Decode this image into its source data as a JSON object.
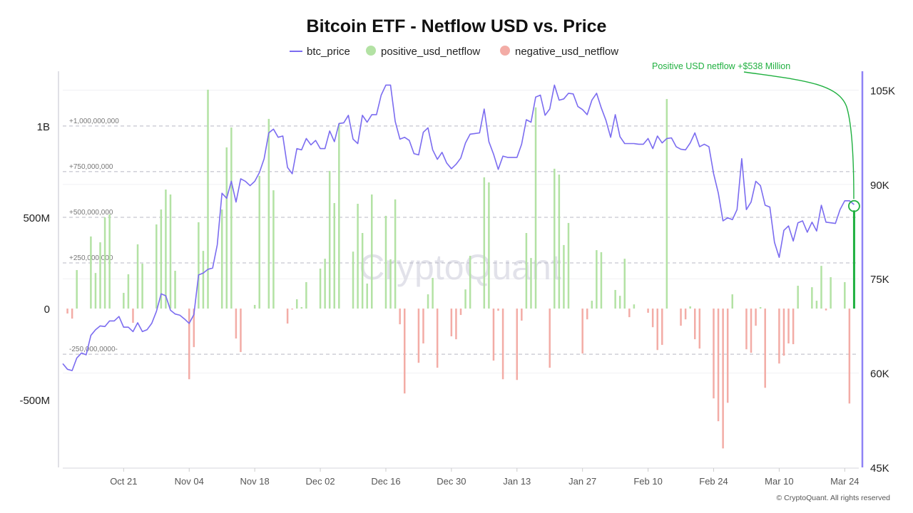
{
  "chart_data": {
    "type": "bar+line",
    "title": "Bitcoin ETF - Netflow USD vs. Price",
    "legend": {
      "placement": "top-center",
      "items": [
        {
          "label": "btc_price",
          "marker": "line",
          "color": "#7b6cf0"
        },
        {
          "label": "positive_usd_netflow",
          "marker": "circle",
          "color": "#b3e2a4"
        },
        {
          "label": "negative_usd_netflow",
          "marker": "circle",
          "color": "#f3aca6"
        }
      ]
    },
    "x_ticks": [
      {
        "date": "2024-10-21",
        "label": "Oct 21"
      },
      {
        "date": "2024-11-04",
        "label": "Nov 04"
      },
      {
        "date": "2024-11-18",
        "label": "Nov 18"
      },
      {
        "date": "2024-12-02",
        "label": "Dec 02"
      },
      {
        "date": "2024-12-16",
        "label": "Dec 16"
      },
      {
        "date": "2024-12-30",
        "label": "Dec 30"
      },
      {
        "date": "2025-01-13",
        "label": "Jan 13"
      },
      {
        "date": "2025-01-27",
        "label": "Jan 27"
      },
      {
        "date": "2025-02-10",
        "label": "Feb 10"
      },
      {
        "date": "2025-02-24",
        "label": "Feb 24"
      },
      {
        "date": "2025-03-10",
        "label": "Mar 10"
      },
      {
        "date": "2025-03-24",
        "label": "Mar 24"
      }
    ],
    "xlim": [
      "2024-10-08",
      "2025-03-27"
    ],
    "y_left": {
      "lim": [
        -870000000,
        1300000000
      ],
      "ticks": [
        {
          "value": 1000000000,
          "label": "1B"
        },
        {
          "value": 500000000,
          "label": "500M"
        },
        {
          "value": 0,
          "label": "0"
        },
        {
          "value": -500000000,
          "label": "-500M"
        }
      ]
    },
    "y_right": {
      "lim": [
        45000,
        108000
      ],
      "color": "#8f82f5",
      "ticks": [
        {
          "value": 105000,
          "label": "105K"
        },
        {
          "value": 90000,
          "label": "90K"
        },
        {
          "value": 75000,
          "label": "75K"
        },
        {
          "value": 60000,
          "label": "60K"
        },
        {
          "value": 45000,
          "label": "45K"
        }
      ]
    },
    "reference_lines": [
      {
        "value": 1000000000,
        "label": "+1,000,000,000"
      },
      {
        "value": 750000000,
        "label": "+750,000,000"
      },
      {
        "value": 500000000,
        "label": "+500,000,000"
      },
      {
        "value": 250000000,
        "label": "+250,000,000"
      },
      {
        "value": -250000000,
        "label": "-250,000,0000-"
      }
    ],
    "annotation": {
      "text": "Positive USD netflow +$538 Million",
      "date": "2025-03-26",
      "value": 538000000,
      "color": "#20b040"
    },
    "watermark": "CryptoQuant",
    "footer": "© CryptoQuant. All rights reserved",
    "btc_price": [
      [
        "2024-10-08",
        61500
      ],
      [
        "2024-10-09",
        60600
      ],
      [
        "2024-10-10",
        60400
      ],
      [
        "2024-10-11",
        62400
      ],
      [
        "2024-10-12",
        63200
      ],
      [
        "2024-10-13",
        62900
      ],
      [
        "2024-10-14",
        66000
      ],
      [
        "2024-10-15",
        66900
      ],
      [
        "2024-10-16",
        67500
      ],
      [
        "2024-10-17",
        67400
      ],
      [
        "2024-10-18",
        68300
      ],
      [
        "2024-10-19",
        68300
      ],
      [
        "2024-10-20",
        69000
      ],
      [
        "2024-10-21",
        67300
      ],
      [
        "2024-10-22",
        67300
      ],
      [
        "2024-10-23",
        66600
      ],
      [
        "2024-10-24",
        68000
      ],
      [
        "2024-10-25",
        66600
      ],
      [
        "2024-10-26",
        66900
      ],
      [
        "2024-10-27",
        67900
      ],
      [
        "2024-10-28",
        69800
      ],
      [
        "2024-10-29",
        72600
      ],
      [
        "2024-10-30",
        72300
      ],
      [
        "2024-10-31",
        70000
      ],
      [
        "2024-11-01",
        69400
      ],
      [
        "2024-11-02",
        69200
      ],
      [
        "2024-11-03",
        68600
      ],
      [
        "2024-11-04",
        67900
      ],
      [
        "2024-11-05",
        69300
      ],
      [
        "2024-11-06",
        75600
      ],
      [
        "2024-11-07",
        75900
      ],
      [
        "2024-11-08",
        76500
      ],
      [
        "2024-11-09",
        76700
      ],
      [
        "2024-11-10",
        80400
      ],
      [
        "2024-11-11",
        88600
      ],
      [
        "2024-11-12",
        87800
      ],
      [
        "2024-11-13",
        90500
      ],
      [
        "2024-11-14",
        87200
      ],
      [
        "2024-11-15",
        90900
      ],
      [
        "2024-11-16",
        90500
      ],
      [
        "2024-11-17",
        89800
      ],
      [
        "2024-11-18",
        90500
      ],
      [
        "2024-11-19",
        91900
      ],
      [
        "2024-11-20",
        94100
      ],
      [
        "2024-11-21",
        98200
      ],
      [
        "2024-11-22",
        98800
      ],
      [
        "2024-11-23",
        97500
      ],
      [
        "2024-11-24",
        97700
      ],
      [
        "2024-11-25",
        92700
      ],
      [
        "2024-11-26",
        91700
      ],
      [
        "2024-11-27",
        95700
      ],
      [
        "2024-11-28",
        95500
      ],
      [
        "2024-11-29",
        97300
      ],
      [
        "2024-11-30",
        96300
      ],
      [
        "2024-12-01",
        97000
      ],
      [
        "2024-12-02",
        95700
      ],
      [
        "2024-12-03",
        95700
      ],
      [
        "2024-12-04",
        98500
      ],
      [
        "2024-12-05",
        96800
      ],
      [
        "2024-12-06",
        99700
      ],
      [
        "2024-12-07",
        99800
      ],
      [
        "2024-12-08",
        101000
      ],
      [
        "2024-12-09",
        97200
      ],
      [
        "2024-12-10",
        96500
      ],
      [
        "2024-12-11",
        101000
      ],
      [
        "2024-12-12",
        99900
      ],
      [
        "2024-12-13",
        101100
      ],
      [
        "2024-12-14",
        101100
      ],
      [
        "2024-12-15",
        104200
      ],
      [
        "2024-12-16",
        105800
      ],
      [
        "2024-12-17",
        105800
      ],
      [
        "2024-12-18",
        100000
      ],
      [
        "2024-12-19",
        97200
      ],
      [
        "2024-12-20",
        97500
      ],
      [
        "2024-12-21",
        97000
      ],
      [
        "2024-12-22",
        94900
      ],
      [
        "2024-12-23",
        94700
      ],
      [
        "2024-12-24",
        98300
      ],
      [
        "2024-12-25",
        99000
      ],
      [
        "2024-12-26",
        95500
      ],
      [
        "2024-12-27",
        94000
      ],
      [
        "2024-12-28",
        95100
      ],
      [
        "2024-12-29",
        93400
      ],
      [
        "2024-12-30",
        92500
      ],
      [
        "2024-12-31",
        93200
      ],
      [
        "2025-01-01",
        94200
      ],
      [
        "2025-01-02",
        96600
      ],
      [
        "2025-01-03",
        98000
      ],
      [
        "2025-01-04",
        98100
      ],
      [
        "2025-01-05",
        98200
      ],
      [
        "2025-01-06",
        102000
      ],
      [
        "2025-01-07",
        96800
      ],
      [
        "2025-01-08",
        94800
      ],
      [
        "2025-01-09",
        92400
      ],
      [
        "2025-01-10",
        94500
      ],
      [
        "2025-01-11",
        94300
      ],
      [
        "2025-01-12",
        94300
      ],
      [
        "2025-01-13",
        94300
      ],
      [
        "2025-01-14",
        96400
      ],
      [
        "2025-01-15",
        100300
      ],
      [
        "2025-01-16",
        99900
      ],
      [
        "2025-01-17",
        103900
      ],
      [
        "2025-01-18",
        104200
      ],
      [
        "2025-01-19",
        101000
      ],
      [
        "2025-01-20",
        102000
      ],
      [
        "2025-01-21",
        105800
      ],
      [
        "2025-01-22",
        103400
      ],
      [
        "2025-01-23",
        103600
      ],
      [
        "2025-01-24",
        104500
      ],
      [
        "2025-01-25",
        104400
      ],
      [
        "2025-01-26",
        102400
      ],
      [
        "2025-01-27",
        101900
      ],
      [
        "2025-01-28",
        101100
      ],
      [
        "2025-01-29",
        103400
      ],
      [
        "2025-01-30",
        104500
      ],
      [
        "2025-01-31",
        102200
      ],
      [
        "2025-02-01",
        100200
      ],
      [
        "2025-02-02",
        97500
      ],
      [
        "2025-02-03",
        101100
      ],
      [
        "2025-02-04",
        97600
      ],
      [
        "2025-02-05",
        96500
      ],
      [
        "2025-02-06",
        96500
      ],
      [
        "2025-02-07",
        96500
      ],
      [
        "2025-02-08",
        96400
      ],
      [
        "2025-02-09",
        96400
      ],
      [
        "2025-02-10",
        97300
      ],
      [
        "2025-02-11",
        95700
      ],
      [
        "2025-02-12",
        97700
      ],
      [
        "2025-02-13",
        96600
      ],
      [
        "2025-02-14",
        97300
      ],
      [
        "2025-02-15",
        97400
      ],
      [
        "2025-02-16",
        96000
      ],
      [
        "2025-02-17",
        95600
      ],
      [
        "2025-02-18",
        95500
      ],
      [
        "2025-02-19",
        96600
      ],
      [
        "2025-02-20",
        98200
      ],
      [
        "2025-02-21",
        96000
      ],
      [
        "2025-02-22",
        96400
      ],
      [
        "2025-02-23",
        96000
      ],
      [
        "2025-02-24",
        91700
      ],
      [
        "2025-02-25",
        88600
      ],
      [
        "2025-02-26",
        84200
      ],
      [
        "2025-02-27",
        84700
      ],
      [
        "2025-02-28",
        84400
      ],
      [
        "2025-03-01",
        86000
      ],
      [
        "2025-03-02",
        94100
      ],
      [
        "2025-03-03",
        86000
      ],
      [
        "2025-03-04",
        87200
      ],
      [
        "2025-03-05",
        90500
      ],
      [
        "2025-03-06",
        89800
      ],
      [
        "2025-03-07",
        86700
      ],
      [
        "2025-03-08",
        86400
      ],
      [
        "2025-03-09",
        80800
      ],
      [
        "2025-03-10",
        78400
      ],
      [
        "2025-03-11",
        82700
      ],
      [
        "2025-03-12",
        83400
      ],
      [
        "2025-03-13",
        81000
      ],
      [
        "2025-03-14",
        83900
      ],
      [
        "2025-03-15",
        84200
      ],
      [
        "2025-03-16",
        82400
      ],
      [
        "2025-03-17",
        84000
      ],
      [
        "2025-03-18",
        82600
      ],
      [
        "2025-03-19",
        86700
      ],
      [
        "2025-03-20",
        84000
      ],
      [
        "2025-03-21",
        83900
      ],
      [
        "2025-03-22",
        83800
      ],
      [
        "2025-03-23",
        86000
      ],
      [
        "2025-03-24",
        87400
      ],
      [
        "2025-03-25",
        87400
      ],
      [
        "2025-03-26",
        86800
      ]
    ],
    "usd_netflow": [
      [
        "2024-10-09",
        -27000000
      ],
      [
        "2024-10-10",
        -55000000
      ],
      [
        "2024-10-11",
        211000000
      ],
      [
        "2024-10-14",
        395000000
      ],
      [
        "2024-10-15",
        195000000
      ],
      [
        "2024-10-16",
        363000000
      ],
      [
        "2024-10-17",
        500000000
      ],
      [
        "2024-10-18",
        516000000
      ],
      [
        "2024-10-21",
        86000000
      ],
      [
        "2024-10-22",
        188000000
      ],
      [
        "2024-10-23",
        -78000000
      ],
      [
        "2024-10-24",
        352000000
      ],
      [
        "2024-10-25",
        246000000
      ],
      [
        "2024-10-28",
        461000000
      ],
      [
        "2024-10-29",
        543000000
      ],
      [
        "2024-10-30",
        652000000
      ],
      [
        "2024-10-31",
        625000000
      ],
      [
        "2024-11-01",
        207000000
      ],
      [
        "2024-11-04",
        -387000000
      ],
      [
        "2024-11-05",
        -211000000
      ],
      [
        "2024-11-06",
        473000000
      ],
      [
        "2024-11-07",
        316000000
      ],
      [
        "2024-11-08",
        1199000000
      ],
      [
        "2024-11-11",
        543000000
      ],
      [
        "2024-11-12",
        883000000
      ],
      [
        "2024-11-13",
        992000000
      ],
      [
        "2024-11-14",
        -164000000
      ],
      [
        "2024-11-15",
        -238000000
      ],
      [
        "2024-11-18",
        20000000
      ],
      [
        "2024-11-19",
        727000000
      ],
      [
        "2024-11-21",
        1039000000
      ],
      [
        "2024-11-22",
        648000000
      ],
      [
        "2024-11-25",
        -82000000
      ],
      [
        "2024-11-26",
        -5000000
      ],
      [
        "2024-11-27",
        51000000
      ],
      [
        "2024-11-28",
        8000000
      ],
      [
        "2024-11-29",
        145000000
      ],
      [
        "2024-12-02",
        219000000
      ],
      [
        "2024-12-03",
        273000000
      ],
      [
        "2024-12-04",
        754000000
      ],
      [
        "2024-12-05",
        578000000
      ],
      [
        "2024-12-06",
        1012000000
      ],
      [
        "2024-12-09",
        312000000
      ],
      [
        "2024-12-10",
        574000000
      ],
      [
        "2024-12-11",
        414000000
      ],
      [
        "2024-12-12",
        137000000
      ],
      [
        "2024-12-13",
        625000000
      ],
      [
        "2024-12-16",
        508000000
      ],
      [
        "2024-12-17",
        270000000
      ],
      [
        "2024-12-18",
        598000000
      ],
      [
        "2024-12-19",
        -86000000
      ],
      [
        "2024-12-20",
        -465000000
      ],
      [
        "2024-12-23",
        -297000000
      ],
      [
        "2024-12-24",
        -191000000
      ],
      [
        "2024-12-25",
        78000000
      ],
      [
        "2024-12-26",
        168000000
      ],
      [
        "2024-12-27",
        -324000000
      ],
      [
        "2024-12-30",
        -152000000
      ],
      [
        "2024-12-31",
        -168000000
      ],
      [
        "2025-01-01",
        -35000000
      ],
      [
        "2025-01-02",
        105000000
      ],
      [
        "2025-01-03",
        289000000
      ],
      [
        "2025-01-06",
        719000000
      ],
      [
        "2025-01-07",
        691000000
      ],
      [
        "2025-01-08",
        -285000000
      ],
      [
        "2025-01-09",
        -12000000
      ],
      [
        "2025-01-10",
        -387000000
      ],
      [
        "2025-01-13",
        -391000000
      ],
      [
        "2025-01-14",
        -66000000
      ],
      [
        "2025-01-15",
        414000000
      ],
      [
        "2025-01-16",
        277000000
      ],
      [
        "2025-01-17",
        1102000000
      ],
      [
        "2025-01-20",
        -324000000
      ],
      [
        "2025-01-21",
        766000000
      ],
      [
        "2025-01-22",
        734000000
      ],
      [
        "2025-01-23",
        348000000
      ],
      [
        "2025-01-24",
        469000000
      ],
      [
        "2025-01-27",
        -246000000
      ],
      [
        "2025-01-28",
        -59000000
      ],
      [
        "2025-01-29",
        43000000
      ],
      [
        "2025-01-30",
        320000000
      ],
      [
        "2025-01-31",
        309000000
      ],
      [
        "2025-02-03",
        102000000
      ],
      [
        "2025-02-04",
        70000000
      ],
      [
        "2025-02-05",
        273000000
      ],
      [
        "2025-02-06",
        -47000000
      ],
      [
        "2025-02-07",
        23000000
      ],
      [
        "2025-02-10",
        -23000000
      ],
      [
        "2025-02-11",
        -102000000
      ],
      [
        "2025-02-12",
        -227000000
      ],
      [
        "2025-02-13",
        -199000000
      ],
      [
        "2025-02-14",
        1148000000
      ],
      [
        "2025-02-17",
        -94000000
      ],
      [
        "2025-02-18",
        -59000000
      ],
      [
        "2025-02-19",
        12000000
      ],
      [
        "2025-02-20",
        -168000000
      ],
      [
        "2025-02-21",
        -219000000
      ],
      [
        "2025-02-24",
        -492000000
      ],
      [
        "2025-02-25",
        -617000000
      ],
      [
        "2025-02-26",
        -766000000
      ],
      [
        "2025-02-27",
        -516000000
      ],
      [
        "2025-02-28",
        78000000
      ],
      [
        "2025-03-03",
        -223000000
      ],
      [
        "2025-03-04",
        -242000000
      ],
      [
        "2025-03-05",
        -94000000
      ],
      [
        "2025-03-06",
        8000000
      ],
      [
        "2025-03-07",
        -434000000
      ],
      [
        "2025-03-10",
        -301000000
      ],
      [
        "2025-03-11",
        -258000000
      ],
      [
        "2025-03-12",
        -191000000
      ],
      [
        "2025-03-13",
        -195000000
      ],
      [
        "2025-03-14",
        125000000
      ],
      [
        "2025-03-17",
        117000000
      ],
      [
        "2025-03-18",
        43000000
      ],
      [
        "2025-03-19",
        234000000
      ],
      [
        "2025-03-20",
        -10000000
      ],
      [
        "2025-03-21",
        172000000
      ],
      [
        "2025-03-24",
        145000000
      ],
      [
        "2025-03-25",
        -520000000
      ],
      [
        "2025-03-26",
        538000000
      ]
    ]
  }
}
